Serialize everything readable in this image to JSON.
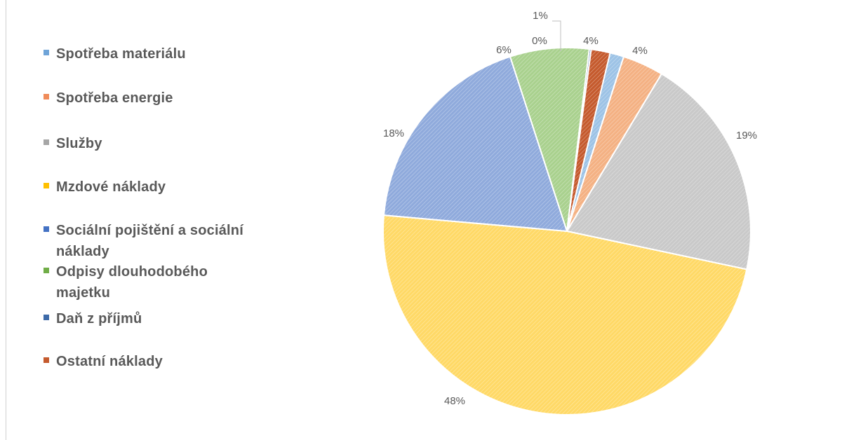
{
  "chart_data": {
    "type": "pie",
    "title": "",
    "legend_position": "left",
    "slices": [
      {
        "name": "Spotřeba materiálu",
        "value": 4,
        "label": "4%",
        "color": "#9dc3e6"
      },
      {
        "name": "Spotřeba energie",
        "value": 4,
        "label": "4%",
        "color": "#f4b183"
      },
      {
        "name": "Služby",
        "value": 19,
        "label": "19%",
        "color": "#c9c9c9"
      },
      {
        "name": "Mzdové náklady",
        "value": 48,
        "label": "48%",
        "color": "#ffd966"
      },
      {
        "name": "Sociální pojištění a sociální náklady",
        "value": 18,
        "label": "18%",
        "color": "#8faadc"
      },
      {
        "name": "Odpisy dlouhodobého majetku",
        "value": 6,
        "label": "6%",
        "color": "#a9d18e"
      },
      {
        "name": "Daň z příjmů",
        "value": 0,
        "label": "0%",
        "color": "#5b7db8"
      },
      {
        "name": "Ostatní náklady",
        "value": 1,
        "label": "1%",
        "color": "#c55a2d"
      }
    ]
  },
  "legend": {
    "items": [
      {
        "label": "Spotřeba materiálu",
        "color": "#6fa4d8"
      },
      {
        "label": "Spotřeba energie",
        "color": "#f08c5a"
      },
      {
        "label": "Služby",
        "color": "#a6a6a6"
      },
      {
        "label": "Mzdové náklady",
        "color": "#ffc000"
      },
      {
        "label": "Sociální pojištění a sociální náklady",
        "color": "#4472c4"
      },
      {
        "label": "Odpisy dlouhodobého majetku",
        "color": "#70ad47"
      },
      {
        "label": "Daň z příjmů",
        "color": "#3d6aa8"
      },
      {
        "label": "Ostatní náklady",
        "color": "#c55a2d"
      }
    ]
  }
}
